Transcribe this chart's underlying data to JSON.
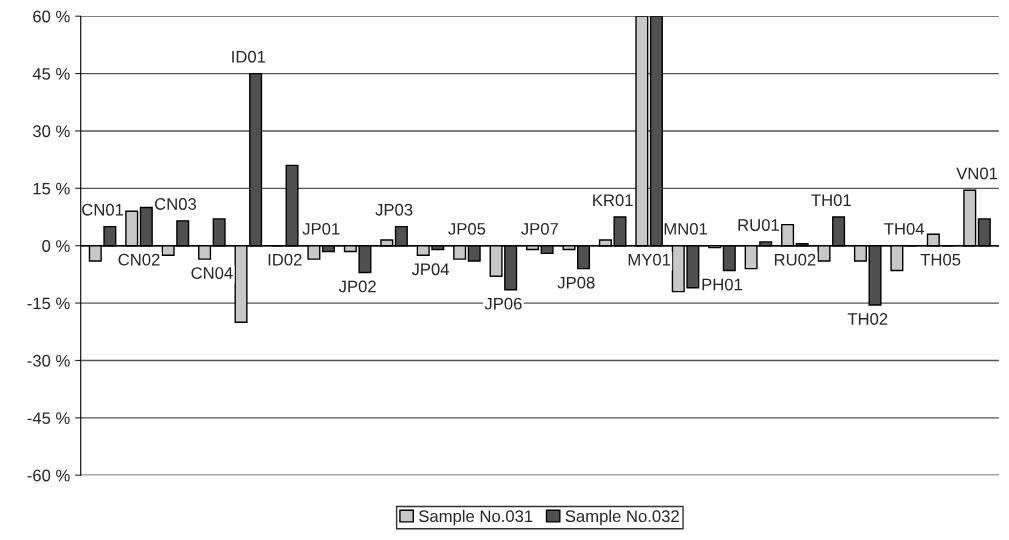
{
  "chart_data": {
    "type": "bar",
    "categories": [
      "CN01",
      "CN02",
      "CN03",
      "CN04",
      "ID01",
      "ID02",
      "JP01",
      "JP02",
      "JP03",
      "JP04",
      "JP05",
      "JP06",
      "JP07",
      "JP08",
      "KR01",
      "MY01",
      "MN01",
      "PH01",
      "RU01",
      "RU02",
      "TH01",
      "TH02",
      "TH04",
      "TH05",
      "VN01"
    ],
    "series": [
      {
        "name": "Sample No.031",
        "color": "#c8c8c8",
        "values": [
          -4,
          9,
          -2.5,
          -3.5,
          -20,
          0,
          -3.5,
          -1.5,
          1.5,
          -2.5,
          -3.5,
          -8,
          -1,
          -1,
          1.5,
          60,
          -12,
          -0.5,
          -6,
          5.5,
          -4,
          -4,
          -6.5,
          3,
          14.5
        ]
      },
      {
        "name": "Sample No.032",
        "color": "#505050",
        "values": [
          5,
          10,
          6.5,
          7,
          45,
          21,
          -1.5,
          -7,
          5,
          -1,
          -4,
          -11.5,
          -2,
          -6,
          7.5,
          60,
          -11,
          -6.5,
          1,
          0.5,
          7.5,
          -15.5,
          0,
          0,
          7
        ]
      }
    ],
    "ylim": [
      -60,
      60
    ],
    "yticks": [
      {
        "value": -60,
        "label": "-60 %"
      },
      {
        "value": -45,
        "label": "-45 %"
      },
      {
        "value": -30,
        "label": "-30 %"
      },
      {
        "value": -15,
        "label": "-15 %"
      },
      {
        "value": 0,
        "label": "0 %"
      },
      {
        "value": 15,
        "label": "15 %"
      },
      {
        "value": 30,
        "label": "30 %"
      },
      {
        "value": 45,
        "label": "45 %"
      },
      {
        "value": 60,
        "label": "60 %"
      }
    ],
    "grid": "y",
    "legend": "bottom"
  }
}
